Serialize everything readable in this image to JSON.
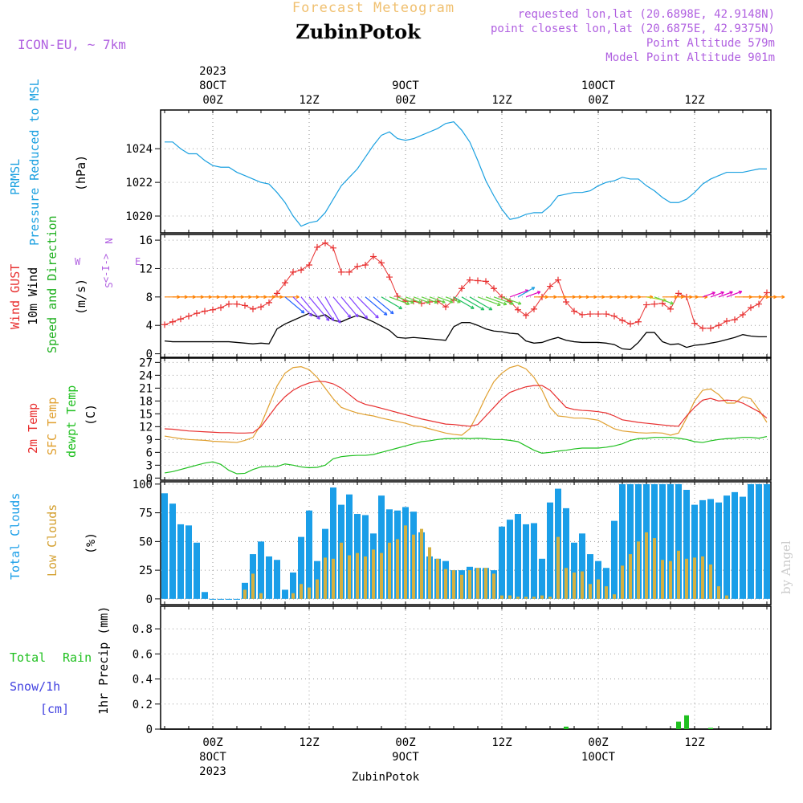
{
  "header": {
    "forecast_title": "Forecast Meteogram",
    "location": "ZubinPotok",
    "model": "ICON-EU, ~ 7km",
    "requested": "requested lon,lat (20.6898E, 42.9148N)",
    "closest": "point closest lon,lat (20.6875E, 42.9375N)",
    "altitude": "Point Altitude 579m",
    "model_altitude": "Model Point Altitude 901m",
    "credit": "by Angel",
    "footer_location": "ZubinPotok"
  },
  "colors": {
    "pressure": "#1aa0e0",
    "gust": "#e83030",
    "wind": "#000000",
    "dir_label": "#20b020",
    "temp2m": "#e83030",
    "sfc": "#e0a030",
    "dewpt": "#20c020",
    "total_cloud": "#1a9ee8",
    "low_cloud": "#d4b040",
    "rain": "#20c020",
    "snow": "#4040e0",
    "title": "#f0c070",
    "meta": "#b060e0"
  },
  "time_axis": {
    "top": [
      {
        "lines": [
          "2023",
          "8OCT",
          "00Z"
        ],
        "h": 6
      },
      {
        "lines": [
          "12Z"
        ],
        "h": 18
      },
      {
        "lines": [
          "9OCT",
          "00Z"
        ],
        "h": 30
      },
      {
        "lines": [
          "12Z"
        ],
        "h": 42
      },
      {
        "lines": [
          "10OCT",
          "00Z"
        ],
        "h": 54
      },
      {
        "lines": [
          "12Z"
        ],
        "h": 66
      }
    ],
    "bottom": [
      {
        "lines": [
          "00Z",
          "8OCT",
          "2023"
        ],
        "h": 6
      },
      {
        "lines": [
          "12Z"
        ],
        "h": 18
      },
      {
        "lines": [
          "00Z",
          "9OCT"
        ],
        "h": 30
      },
      {
        "lines": [
          "12Z"
        ],
        "h": 42
      },
      {
        "lines": [
          "00Z",
          "10OCT"
        ],
        "h": 54
      },
      {
        "lines": [
          "12Z"
        ],
        "h": 66
      }
    ]
  },
  "panels": {
    "pressure": {
      "labels": [
        "PRMSL",
        "Pressure Reduced to MSL",
        "(hPa)"
      ]
    },
    "wind": {
      "labels": [
        "Wind GUST",
        "10m Wind",
        "Speed and Direction",
        "(m/s)"
      ],
      "compass": [
        "W",
        "<-I->",
        "E",
        "N",
        "S"
      ]
    },
    "temp": {
      "labels": [
        "2m Temp",
        "SFC Temp",
        "dewpt Temp",
        "(C)"
      ]
    },
    "clouds": {
      "labels": [
        "Total Clouds",
        "Low Clouds",
        "(%)"
      ]
    },
    "precip": {
      "labels": [
        "Total",
        "Rain",
        "Snow/1h",
        "[cm]",
        "1hr Precip (mm)"
      ]
    }
  },
  "chart_data": [
    {
      "type": "line",
      "series": [
        {
          "name": "PRMSL",
          "values": [
            1024.4,
            1024.4,
            1024.0,
            1023.7,
            1023.7,
            1023.3,
            1023.0,
            1022.9,
            1022.9,
            1022.6,
            1022.4,
            1022.2,
            1022.0,
            1021.9,
            1021.4,
            1020.8,
            1020.0,
            1019.4,
            1019.6,
            1019.7,
            1020.2,
            1021.0,
            1021.8,
            1022.3,
            1022.8,
            1023.5,
            1024.2,
            1024.8,
            1025.0,
            1024.6,
            1024.5,
            1024.6,
            1024.8,
            1025.0,
            1025.2,
            1025.5,
            1025.6,
            1025.1,
            1024.4,
            1023.3,
            1022.1,
            1021.2,
            1020.4,
            1019.8,
            1019.9,
            1020.1,
            1020.2,
            1020.2,
            1020.6,
            1021.2,
            1021.3,
            1021.4,
            1021.4,
            1021.5,
            1021.8,
            1022.0,
            1022.1,
            1022.3,
            1022.2,
            1022.2,
            1021.8,
            1021.5,
            1021.1,
            1020.8,
            1020.8,
            1021.0,
            1021.4,
            1021.9,
            1022.2,
            1022.4,
            1022.6,
            1022.6,
            1022.6,
            1022.7,
            1022.8,
            1022.8,
            1022.6,
            1022.8
          ]
        }
      ],
      "xlabel": "",
      "ylabel": "(hPa)",
      "ylim": [
        1019,
        1026.3
      ],
      "yticks": [
        1020,
        1022,
        1024
      ]
    },
    {
      "type": "line",
      "series": [
        {
          "name": "Wind GUST",
          "values": [
            4.1,
            4.5,
            4.9,
            5.3,
            5.7,
            6.0,
            6.2,
            6.5,
            7.0,
            7.0,
            6.8,
            6.3,
            6.6,
            7.2,
            8.5,
            10.0,
            11.5,
            11.8,
            12.5,
            15.0,
            15.6,
            14.9,
            11.5,
            11.5,
            12.3,
            12.5,
            13.7,
            12.8,
            10.8,
            8.1,
            7.4,
            7.4,
            7.1,
            7.3,
            7.4,
            6.6,
            7.6,
            9.2,
            10.4,
            10.3,
            10.2,
            9.2,
            8.0,
            7.4,
            6.2,
            5.4,
            6.3,
            8.0,
            9.5,
            10.4,
            7.3,
            6.0,
            5.5,
            5.6,
            5.6,
            5.6,
            5.3,
            4.7,
            4.2,
            4.5,
            6.9,
            7.0,
            7.1,
            6.3,
            8.5,
            8.0,
            4.3,
            3.6,
            3.6,
            4.0,
            4.6,
            4.8,
            5.5,
            6.5,
            7.0,
            8.6,
            8.6,
            8.6
          ]
        },
        {
          "name": "10m Wind",
          "values": [
            1.8,
            1.7,
            1.7,
            1.7,
            1.7,
            1.7,
            1.7,
            1.7,
            1.7,
            1.6,
            1.5,
            1.4,
            1.5,
            1.4,
            3.5,
            4.2,
            4.7,
            5.2,
            5.7,
            5.2,
            5.5,
            4.7,
            4.5,
            5.0,
            5.4,
            5.0,
            4.5,
            3.9,
            3.3,
            2.3,
            2.2,
            2.3,
            2.2,
            2.1,
            2.0,
            1.9,
            3.8,
            4.4,
            4.4,
            4.0,
            3.5,
            3.2,
            3.1,
            2.9,
            2.8,
            1.8,
            1.5,
            1.6,
            2.0,
            2.3,
            1.9,
            1.7,
            1.6,
            1.6,
            1.6,
            1.5,
            1.3,
            0.7,
            0.6,
            1.6,
            3.0,
            3.0,
            1.7,
            1.3,
            1.4,
            0.9,
            1.2,
            1.3,
            1.5,
            1.7,
            2.0,
            2.3,
            2.7,
            2.5,
            2.4,
            2.4,
            2.5,
            2.5
          ]
        }
      ],
      "direction_deg": [
        270,
        270,
        270,
        270,
        270,
        270,
        270,
        270,
        270,
        270,
        270,
        270,
        270,
        270,
        270,
        310,
        315,
        320,
        320,
        325,
        330,
        320,
        320,
        320,
        315,
        310,
        310,
        300,
        290,
        290,
        290,
        290,
        290,
        290,
        290,
        290,
        300,
        300,
        300,
        290,
        290,
        290,
        290,
        250,
        240,
        250,
        270,
        270,
        270,
        270,
        270,
        270,
        270,
        270,
        270,
        270,
        270,
        270,
        270,
        270,
        280,
        290,
        270,
        270,
        270,
        270,
        270,
        250,
        250,
        250,
        250,
        270,
        270,
        270,
        270,
        270,
        270,
        270
      ],
      "xlabel": "",
      "ylabel": "(m/s)",
      "ylim": [
        -0.5,
        16.8
      ],
      "yticks": [
        0,
        4,
        8,
        12,
        16
      ]
    },
    {
      "type": "line",
      "series": [
        {
          "name": "2m Temp",
          "values": [
            11.5,
            11.4,
            11.2,
            11.0,
            10.9,
            10.8,
            10.7,
            10.6,
            10.6,
            10.5,
            10.5,
            10.6,
            12.0,
            14.5,
            17.0,
            19.0,
            20.5,
            21.5,
            22.2,
            22.6,
            22.5,
            22.0,
            21.0,
            19.5,
            18.0,
            17.2,
            16.8,
            16.3,
            15.8,
            15.3,
            14.8,
            14.3,
            13.8,
            13.4,
            13.0,
            12.6,
            12.5,
            12.3,
            12.1,
            12.5,
            14.5,
            16.5,
            18.5,
            20.0,
            20.7,
            21.3,
            21.6,
            21.6,
            20.5,
            18.5,
            16.5,
            16.0,
            15.8,
            15.7,
            15.5,
            15.2,
            14.5,
            13.6,
            13.3,
            13.0,
            12.8,
            12.6,
            12.4,
            12.2,
            12.1,
            14.5,
            16.5,
            18.2,
            18.6,
            18.0,
            18.2,
            18.1,
            17.5,
            16.5,
            15.5,
            14.0,
            13.5,
            13.5
          ]
        },
        {
          "name": "SFC Temp",
          "values": [
            9.8,
            9.5,
            9.2,
            9.0,
            8.9,
            8.8,
            8.6,
            8.5,
            8.4,
            8.3,
            8.8,
            9.5,
            12.5,
            17.0,
            21.5,
            24.5,
            25.8,
            26.0,
            25.3,
            23.5,
            21.0,
            18.5,
            16.5,
            15.8,
            15.2,
            14.8,
            14.5,
            14.0,
            13.6,
            13.2,
            12.8,
            12.2,
            12.0,
            11.5,
            11.0,
            10.5,
            10.2,
            10.0,
            11.5,
            15.0,
            19.0,
            22.5,
            24.5,
            25.8,
            26.3,
            25.5,
            23.5,
            20.5,
            16.5,
            14.5,
            14.3,
            14.0,
            14.0,
            13.8,
            13.5,
            12.5,
            11.5,
            11.0,
            10.8,
            10.6,
            10.5,
            10.6,
            10.5,
            10.0,
            10.5,
            14.0,
            18.0,
            20.5,
            20.8,
            19.5,
            17.5,
            17.5,
            19.0,
            18.5,
            16.0,
            13.0,
            11.5,
            11.5
          ]
        },
        {
          "name": "dewpt Temp",
          "values": [
            1.2,
            1.5,
            2.0,
            2.5,
            3.0,
            3.5,
            3.8,
            3.2,
            1.8,
            1.0,
            1.1,
            2.0,
            2.6,
            2.7,
            2.7,
            3.3,
            3.0,
            2.6,
            2.4,
            2.5,
            3.0,
            4.5,
            5.0,
            5.2,
            5.3,
            5.3,
            5.5,
            6.0,
            6.5,
            7.0,
            7.5,
            8.0,
            8.5,
            8.7,
            9.0,
            9.2,
            9.2,
            9.3,
            9.2,
            9.3,
            9.2,
            9.0,
            9.0,
            8.8,
            8.5,
            7.5,
            6.5,
            5.8,
            6.0,
            6.3,
            6.5,
            6.8,
            7.0,
            7.0,
            7.0,
            7.2,
            7.5,
            8.0,
            8.8,
            9.2,
            9.3,
            9.5,
            9.5,
            9.5,
            9.3,
            9.0,
            8.5,
            8.3,
            8.7,
            9.0,
            9.2,
            9.3,
            9.5,
            9.5,
            9.3,
            9.7,
            9.5,
            9.0
          ]
        }
      ],
      "xlabel": "",
      "ylabel": "(C)",
      "ylim": [
        -0.5,
        28
      ],
      "yticks": [
        0,
        3,
        6,
        9,
        12,
        15,
        18,
        21,
        24,
        27
      ]
    },
    {
      "type": "bar",
      "series": [
        {
          "name": "Total Clouds",
          "values": [
            92,
            83,
            65,
            64,
            49,
            6,
            0,
            0,
            0,
            0,
            14,
            39,
            50,
            37,
            34,
            8,
            23,
            54,
            77,
            33,
            61,
            97,
            82,
            91,
            74,
            73,
            57,
            90,
            78,
            77,
            80,
            76,
            58,
            37,
            35,
            33,
            25,
            25,
            28,
            27,
            27,
            25,
            63,
            69,
            74,
            65,
            66,
            35,
            84,
            96,
            79,
            49,
            57,
            39,
            33,
            27,
            68,
            100,
            100,
            100,
            100,
            100,
            100,
            100,
            100,
            95,
            82,
            86,
            87,
            84,
            90,
            93,
            89,
            100,
            100,
            100
          ]
        },
        {
          "name": "Low Clouds",
          "values": [
            0,
            0,
            0,
            0,
            0,
            0,
            0,
            0,
            0,
            0,
            8,
            22,
            5,
            0,
            0,
            0,
            5,
            13,
            10,
            17,
            36,
            35,
            49,
            38,
            40,
            37,
            43,
            40,
            49,
            52,
            64,
            56,
            61,
            45,
            35,
            26,
            25,
            21,
            25,
            27,
            27,
            22,
            3,
            3,
            2,
            2,
            2,
            3,
            2,
            54,
            27,
            23,
            24,
            13,
            17,
            11,
            4,
            29,
            39,
            50,
            58,
            53,
            34,
            33,
            42,
            35,
            36,
            37,
            30,
            11,
            3,
            0,
            0,
            0,
            0,
            0
          ]
        }
      ],
      "xlabel": "",
      "ylabel": "(%)",
      "ylim": [
        -5,
        102
      ],
      "yticks": [
        0,
        25,
        50,
        75,
        100
      ]
    },
    {
      "type": "bar",
      "series": [
        {
          "name": "Total",
          "values": [
            0,
            0,
            0,
            0,
            0,
            0,
            0,
            0,
            0,
            0,
            0,
            0,
            0,
            0,
            0,
            0,
            0,
            0,
            0,
            0,
            0,
            0,
            0,
            0,
            0,
            0,
            0,
            0,
            0,
            0,
            0,
            0,
            0,
            0,
            0,
            0,
            0,
            0,
            0,
            0,
            0,
            0,
            0,
            0,
            0,
            0,
            0,
            0,
            0,
            0,
            0.02,
            0,
            0,
            0,
            0,
            0,
            0,
            0,
            0,
            0,
            0,
            0,
            0,
            0,
            0.06,
            0.11,
            0,
            0,
            0.01,
            0,
            0,
            0,
            0,
            0,
            0,
            0,
            0,
            0
          ]
        }
      ],
      "xlabel": "",
      "ylabel": "1hr Precip (mm)",
      "ylim": [
        0,
        0.98
      ],
      "yticks": [
        0,
        0.2,
        0.4,
        0.6,
        0.8
      ]
    }
  ]
}
